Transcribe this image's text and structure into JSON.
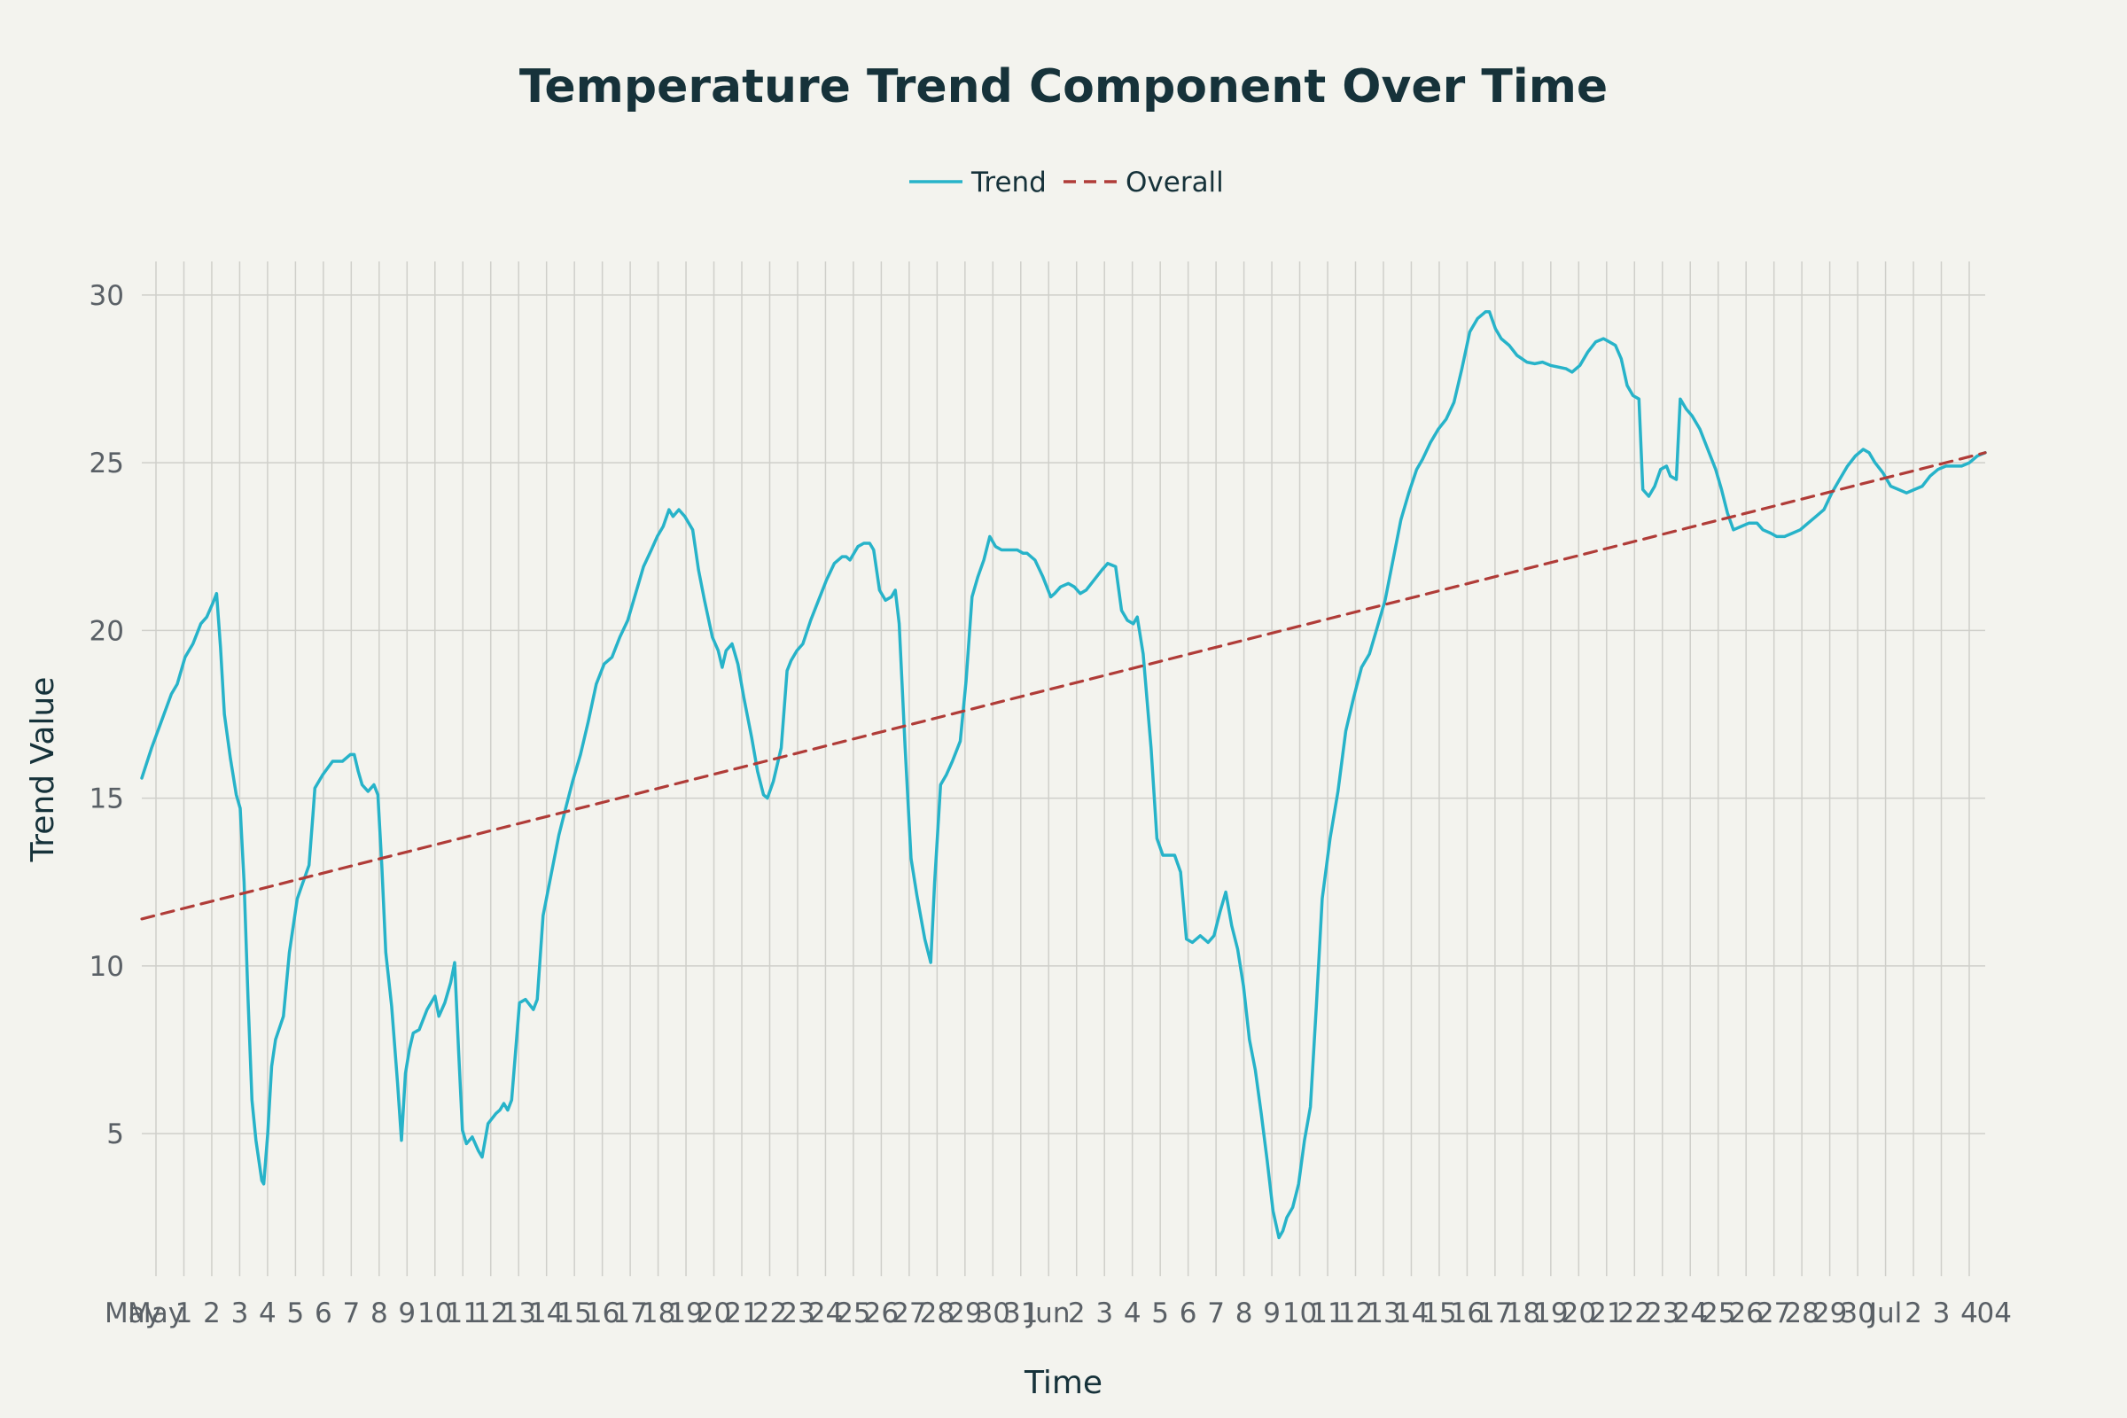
{
  "chart_data": {
    "type": "line",
    "title": "Temperature Trend Component Over Time",
    "xlabel": "Time",
    "ylabel": "Trend Value",
    "ylim": [
      0.75,
      31
    ],
    "y_ticks": [
      5,
      10,
      15,
      20,
      25,
      30
    ],
    "grid": true,
    "legend_position": "top-center",
    "x_tick_labels": [
      "May",
      "1",
      "2",
      "3",
      "4",
      "5",
      "6",
      "7",
      "8",
      "9",
      "10",
      "11",
      "12",
      "13",
      "14",
      "15",
      "16",
      "17",
      "18",
      "19",
      "20",
      "21",
      "22",
      "23",
      "24",
      "25",
      "26",
      "27",
      "28",
      "29",
      "30",
      "31",
      "Jun",
      "2",
      "3",
      "4",
      "5",
      "6",
      "7",
      "8",
      "9",
      "10",
      "11",
      "12",
      "13",
      "14",
      "15",
      "16",
      "17",
      "18",
      "19",
      "20",
      "21",
      "22",
      "23",
      "24",
      "25",
      "26",
      "27",
      "28",
      "29",
      "30",
      "Jul",
      "2",
      "3",
      "4"
    ],
    "x_start_label": "May",
    "x_end_label": "04",
    "series": [
      {
        "name": "Trend",
        "color": "#27b3c9",
        "style": "solid",
        "points": [
          [
            0,
            15.6
          ],
          [
            0.5,
            16.5
          ],
          [
            1,
            17.3
          ],
          [
            1.5,
            18.1
          ],
          [
            1.8,
            18.4
          ],
          [
            2.2,
            19.2
          ],
          [
            2.6,
            19.6
          ],
          [
            3,
            20.2
          ],
          [
            3.3,
            20.4
          ],
          [
            3.6,
            20.8
          ],
          [
            3.8,
            21.1
          ],
          [
            4,
            19.5
          ],
          [
            4.2,
            17.5
          ],
          [
            4.5,
            16.2
          ],
          [
            4.8,
            15.1
          ],
          [
            5,
            14.7
          ],
          [
            5.2,
            12.5
          ],
          [
            5.4,
            9.0
          ],
          [
            5.6,
            6.0
          ],
          [
            5.8,
            4.8
          ],
          [
            6.1,
            3.6
          ],
          [
            6.2,
            3.5
          ],
          [
            6.4,
            5.0
          ],
          [
            6.6,
            7.0
          ],
          [
            6.8,
            7.8
          ],
          [
            7.2,
            8.5
          ],
          [
            7.5,
            10.4
          ],
          [
            7.9,
            12.0
          ],
          [
            8.2,
            12.5
          ],
          [
            8.5,
            13.0
          ],
          [
            8.7,
            14.5
          ],
          [
            8.8,
            15.3
          ],
          [
            9.2,
            15.7
          ],
          [
            9.7,
            16.1
          ],
          [
            10.2,
            16.1
          ],
          [
            10.6,
            16.3
          ],
          [
            10.8,
            16.3
          ],
          [
            11,
            15.8
          ],
          [
            11.2,
            15.4
          ],
          [
            11.5,
            15.2
          ],
          [
            11.8,
            15.4
          ],
          [
            12,
            15.1
          ],
          [
            12.2,
            13.0
          ],
          [
            12.4,
            10.4
          ],
          [
            12.7,
            8.8
          ],
          [
            13,
            6.5
          ],
          [
            13.2,
            4.8
          ],
          [
            13.4,
            6.8
          ],
          [
            13.6,
            7.5
          ],
          [
            13.8,
            8.0
          ],
          [
            14.1,
            8.1
          ],
          [
            14.5,
            8.7
          ],
          [
            14.9,
            9.1
          ],
          [
            15.1,
            8.5
          ],
          [
            15.4,
            8.9
          ],
          [
            15.7,
            9.5
          ],
          [
            15.9,
            10.1
          ],
          [
            16.1,
            7.5
          ],
          [
            16.3,
            5.1
          ],
          [
            16.5,
            4.7
          ],
          [
            16.8,
            4.9
          ],
          [
            17.1,
            4.5
          ],
          [
            17.3,
            4.3
          ],
          [
            17.6,
            5.3
          ],
          [
            18,
            5.6
          ],
          [
            18.2,
            5.7
          ],
          [
            18.4,
            5.9
          ],
          [
            18.6,
            5.7
          ],
          [
            18.8,
            6.0
          ],
          [
            19.2,
            8.9
          ],
          [
            19.5,
            9.0
          ],
          [
            19.9,
            8.7
          ],
          [
            20.1,
            9.0
          ],
          [
            20.4,
            11.5
          ],
          [
            20.8,
            12.7
          ],
          [
            21.2,
            13.9
          ],
          [
            21.5,
            14.6
          ],
          [
            21.9,
            15.5
          ],
          [
            22.3,
            16.3
          ],
          [
            22.7,
            17.3
          ],
          [
            23.1,
            18.4
          ],
          [
            23.5,
            19.0
          ],
          [
            23.9,
            19.2
          ],
          [
            24.3,
            19.8
          ],
          [
            24.7,
            20.3
          ],
          [
            25.1,
            21.1
          ],
          [
            25.5,
            21.9
          ],
          [
            25.9,
            22.4
          ],
          [
            26.2,
            22.8
          ],
          [
            26.5,
            23.1
          ],
          [
            26.8,
            23.6
          ],
          [
            27,
            23.4
          ],
          [
            27.3,
            23.6
          ],
          [
            27.6,
            23.4
          ],
          [
            28,
            23.0
          ],
          [
            28.3,
            21.8
          ],
          [
            28.6,
            20.9
          ],
          [
            29,
            19.8
          ],
          [
            29.3,
            19.4
          ],
          [
            29.5,
            18.9
          ],
          [
            29.7,
            19.4
          ],
          [
            30,
            19.6
          ],
          [
            30.3,
            19.0
          ],
          [
            30.6,
            18.0
          ],
          [
            31,
            16.8
          ],
          [
            31.3,
            15.8
          ],
          [
            31.6,
            15.1
          ],
          [
            31.8,
            15.0
          ],
          [
            32.1,
            15.5
          ],
          [
            32.5,
            16.5
          ],
          [
            32.8,
            18.8
          ],
          [
            33,
            19.1
          ],
          [
            33.3,
            19.4
          ],
          [
            33.6,
            19.6
          ],
          [
            34,
            20.3
          ],
          [
            34.4,
            20.9
          ],
          [
            34.8,
            21.5
          ],
          [
            35.2,
            22.0
          ],
          [
            35.6,
            22.2
          ],
          [
            35.8,
            22.2
          ],
          [
            36,
            22.1
          ],
          [
            36.4,
            22.5
          ],
          [
            36.7,
            22.6
          ],
          [
            37,
            22.6
          ],
          [
            37.2,
            22.4
          ],
          [
            37.5,
            21.2
          ],
          [
            37.8,
            20.9
          ],
          [
            38.1,
            21.0
          ],
          [
            38.3,
            21.2
          ],
          [
            38.5,
            20.2
          ],
          [
            38.8,
            16.5
          ],
          [
            39.1,
            13.2
          ],
          [
            39.4,
            12.1
          ],
          [
            39.8,
            10.8
          ],
          [
            40.1,
            10.1
          ],
          [
            40.3,
            12.5
          ],
          [
            40.6,
            15.4
          ],
          [
            40.9,
            15.7
          ],
          [
            41.2,
            16.1
          ],
          [
            41.6,
            16.7
          ],
          [
            41.9,
            18.5
          ],
          [
            42.2,
            21.0
          ],
          [
            42.5,
            21.6
          ],
          [
            42.8,
            22.1
          ],
          [
            43.1,
            22.8
          ],
          [
            43.4,
            22.5
          ],
          [
            43.7,
            22.4
          ],
          [
            44.1,
            22.4
          ],
          [
            44.5,
            22.4
          ],
          [
            44.8,
            22.3
          ],
          [
            45,
            22.3
          ],
          [
            45.4,
            22.1
          ],
          [
            45.8,
            21.6
          ],
          [
            46.2,
            21.0
          ],
          [
            46.4,
            21.1
          ],
          [
            46.7,
            21.3
          ],
          [
            47.1,
            21.4
          ],
          [
            47.4,
            21.3
          ],
          [
            47.7,
            21.1
          ],
          [
            48,
            21.2
          ],
          [
            48.4,
            21.5
          ],
          [
            48.8,
            21.8
          ],
          [
            49.1,
            22.0
          ],
          [
            49.5,
            21.9
          ],
          [
            49.8,
            20.6
          ],
          [
            50.1,
            20.3
          ],
          [
            50.4,
            20.2
          ],
          [
            50.6,
            20.4
          ],
          [
            50.9,
            19.3
          ],
          [
            51.3,
            16.5
          ],
          [
            51.6,
            13.8
          ],
          [
            51.9,
            13.3
          ],
          [
            52.2,
            13.3
          ],
          [
            52.5,
            13.3
          ],
          [
            52.8,
            12.8
          ],
          [
            53.1,
            10.8
          ],
          [
            53.4,
            10.7
          ],
          [
            53.8,
            10.9
          ],
          [
            54.2,
            10.7
          ],
          [
            54.5,
            10.9
          ],
          [
            54.8,
            11.6
          ],
          [
            55.1,
            12.2
          ],
          [
            55.4,
            11.2
          ],
          [
            55.7,
            10.5
          ],
          [
            56,
            9.4
          ],
          [
            56.3,
            7.8
          ],
          [
            56.6,
            6.9
          ],
          [
            56.9,
            5.6
          ],
          [
            57.2,
            4.2
          ],
          [
            57.5,
            2.7
          ],
          [
            57.8,
            1.9
          ],
          [
            58,
            2.1
          ],
          [
            58.2,
            2.5
          ],
          [
            58.5,
            2.8
          ],
          [
            58.8,
            3.5
          ],
          [
            59.1,
            4.8
          ],
          [
            59.4,
            5.8
          ],
          [
            59.7,
            8.8
          ],
          [
            60,
            12.0
          ],
          [
            60.4,
            13.8
          ],
          [
            60.8,
            15.2
          ],
          [
            61.2,
            17.0
          ],
          [
            61.6,
            18.0
          ],
          [
            62,
            18.9
          ],
          [
            62.4,
            19.3
          ],
          [
            62.8,
            20.1
          ],
          [
            63.2,
            20.9
          ],
          [
            63.6,
            22.1
          ],
          [
            64,
            23.3
          ],
          [
            64.4,
            24.1
          ],
          [
            64.8,
            24.8
          ],
          [
            65.1,
            25.1
          ],
          [
            65.5,
            25.6
          ],
          [
            65.9,
            26.0
          ],
          [
            66.3,
            26.3
          ],
          [
            66.7,
            26.8
          ],
          [
            67.1,
            27.8
          ],
          [
            67.5,
            28.9
          ],
          [
            67.9,
            29.3
          ],
          [
            68.3,
            29.5
          ],
          [
            68.5,
            29.5
          ],
          [
            68.8,
            29.0
          ],
          [
            69.1,
            28.7
          ],
          [
            69.5,
            28.5
          ],
          [
            69.9,
            28.2
          ],
          [
            70.4,
            28.0
          ],
          [
            70.8,
            27.95
          ],
          [
            71.2,
            28.0
          ],
          [
            71.6,
            27.9
          ],
          [
            72,
            27.85
          ],
          [
            72.4,
            27.8
          ],
          [
            72.7,
            27.7
          ],
          [
            73.1,
            27.9
          ],
          [
            73.5,
            28.3
          ],
          [
            73.9,
            28.6
          ],
          [
            74.3,
            28.7
          ],
          [
            74.6,
            28.6
          ],
          [
            74.9,
            28.5
          ],
          [
            75.2,
            28.1
          ],
          [
            75.5,
            27.3
          ],
          [
            75.8,
            27.0
          ],
          [
            76.1,
            26.9
          ],
          [
            76.3,
            24.2
          ],
          [
            76.6,
            24.0
          ],
          [
            76.9,
            24.3
          ],
          [
            77.2,
            24.8
          ],
          [
            77.5,
            24.9
          ],
          [
            77.7,
            24.6
          ],
          [
            78.0,
            24.5
          ],
          [
            78.2,
            26.9
          ],
          [
            78.5,
            26.6
          ],
          [
            78.8,
            26.4
          ],
          [
            79.2,
            26.0
          ],
          [
            79.6,
            25.4
          ],
          [
            80,
            24.8
          ],
          [
            80.3,
            24.2
          ],
          [
            80.6,
            23.5
          ],
          [
            80.9,
            23.0
          ],
          [
            81.3,
            23.1
          ],
          [
            81.7,
            23.2
          ],
          [
            82.1,
            23.2
          ],
          [
            82.4,
            23.0
          ],
          [
            82.8,
            22.9
          ],
          [
            83.1,
            22.8
          ],
          [
            83.5,
            22.8
          ],
          [
            83.9,
            22.9
          ],
          [
            84.3,
            23.0
          ],
          [
            84.7,
            23.2
          ],
          [
            85.1,
            23.4
          ],
          [
            85.5,
            23.6
          ],
          [
            85.9,
            24.1
          ],
          [
            86.3,
            24.5
          ],
          [
            86.7,
            24.9
          ],
          [
            87.1,
            25.2
          ],
          [
            87.5,
            25.4
          ],
          [
            87.8,
            25.3
          ],
          [
            88.1,
            25.0
          ],
          [
            88.5,
            24.7
          ],
          [
            88.9,
            24.3
          ],
          [
            89.3,
            24.2
          ],
          [
            89.7,
            24.1
          ],
          [
            90.1,
            24.2
          ],
          [
            90.5,
            24.3
          ],
          [
            90.9,
            24.6
          ],
          [
            91.3,
            24.8
          ],
          [
            91.7,
            24.9
          ],
          [
            92.1,
            24.9
          ],
          [
            92.5,
            24.9
          ],
          [
            92.9,
            25.0
          ],
          [
            93.3,
            25.2
          ],
          [
            93.7,
            25.3
          ]
        ]
      },
      {
        "name": "Overall",
        "color": "#b03c38",
        "style": "dashed",
        "points": [
          [
            0,
            11.4
          ],
          [
            93.7,
            25.3
          ]
        ]
      }
    ]
  }
}
